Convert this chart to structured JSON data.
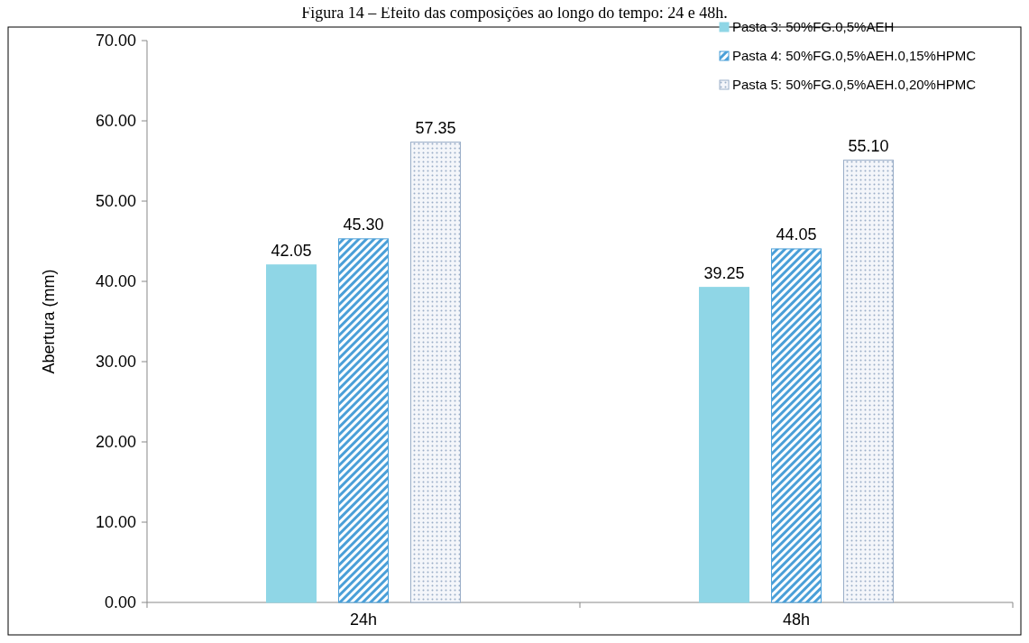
{
  "chart_data": {
    "type": "bar",
    "title": "Figura 14 – Efeito das composições ao longo do tempo: 24 e 48h.",
    "ylabel": "Abertura (mm)",
    "categories": [
      "24h",
      "48h"
    ],
    "series": [
      {
        "name": "Pasta 3: 50%FG.0,5%AEH",
        "color": "#8fd6e6",
        "values": [
          42.05,
          39.25
        ]
      },
      {
        "name": "Pasta 4: 50%FG.0,5%AEH.0,15%HPMC",
        "color": "#4a9fd8",
        "values": [
          45.3,
          44.05
        ]
      },
      {
        "name": "Pasta 5: 50%FG.0,5%AEH.0,20%HPMC",
        "color": "#9aaec8",
        "values": [
          57.35,
          55.1
        ]
      }
    ],
    "ylim": [
      0,
      70
    ],
    "yticks": [
      {
        "value": 0,
        "label": "0.00"
      },
      {
        "value": 10,
        "label": "10.00"
      },
      {
        "value": 20,
        "label": "20.00"
      },
      {
        "value": 30,
        "label": "30.00"
      },
      {
        "value": 40,
        "label": "40.00"
      },
      {
        "value": 50,
        "label": "50.00"
      },
      {
        "value": 60,
        "label": "60.00"
      },
      {
        "value": 70,
        "label": "70.00"
      }
    ],
    "value_labels": [
      [
        "42.05",
        "39.25"
      ],
      [
        "45.30",
        "44.05"
      ],
      [
        "57.35",
        "55.10"
      ]
    ],
    "grid": false,
    "legend": "top right"
  }
}
